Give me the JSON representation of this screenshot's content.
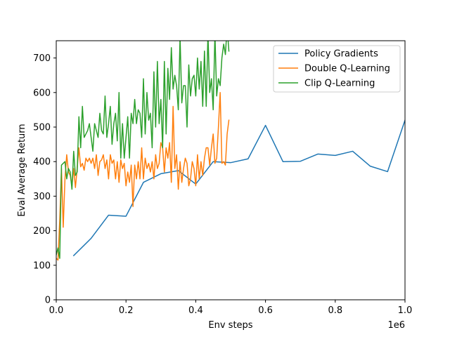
{
  "chart_data": {
    "type": "line",
    "xlabel": "Env steps",
    "ylabel": "Eval Average Return",
    "x_offset_label": "1e6",
    "xlim": [
      0,
      1.0
    ],
    "ylim": [
      0,
      750
    ],
    "x_ticks": [
      0.0,
      0.2,
      0.4,
      0.6,
      0.8,
      1.0
    ],
    "x_tick_labels": [
      "0.0",
      "0.2",
      "0.4",
      "0.6",
      "0.8",
      "1.0"
    ],
    "y_ticks": [
      0,
      100,
      200,
      300,
      400,
      500,
      600,
      700
    ],
    "y_tick_labels": [
      "0",
      "100",
      "200",
      "300",
      "400",
      "500",
      "600",
      "700"
    ],
    "grid": false,
    "legend_position": "top-right",
    "series": [
      {
        "name": "Policy Gradients",
        "color": "#1f77b4",
        "x": [
          0.05,
          0.1,
          0.15,
          0.2,
          0.25,
          0.3,
          0.35,
          0.4,
          0.45,
          0.5,
          0.55,
          0.6,
          0.65,
          0.7,
          0.75,
          0.8,
          0.85,
          0.9,
          0.95,
          1.0
        ],
        "y": [
          128,
          178,
          245,
          242,
          340,
          365,
          374,
          335,
          400,
          397,
          408,
          505,
          400,
          401,
          422,
          418,
          430,
          387,
          371,
          520
        ]
      },
      {
        "name": "Double Q-Learning",
        "color": "#ff7f0e",
        "x": [
          0.0,
          0.005,
          0.01,
          0.015,
          0.02,
          0.025,
          0.03,
          0.035,
          0.04,
          0.045,
          0.05,
          0.055,
          0.06,
          0.065,
          0.07,
          0.075,
          0.08,
          0.085,
          0.09,
          0.095,
          0.1,
          0.105,
          0.11,
          0.115,
          0.12,
          0.125,
          0.13,
          0.135,
          0.14,
          0.145,
          0.15,
          0.155,
          0.16,
          0.165,
          0.17,
          0.175,
          0.18,
          0.185,
          0.19,
          0.195,
          0.2,
          0.205,
          0.21,
          0.215,
          0.22,
          0.225,
          0.23,
          0.235,
          0.24,
          0.245,
          0.25,
          0.255,
          0.26,
          0.265,
          0.27,
          0.275,
          0.28,
          0.285,
          0.29,
          0.295,
          0.3,
          0.305,
          0.31,
          0.315,
          0.32,
          0.325,
          0.33,
          0.335,
          0.34,
          0.345,
          0.35,
          0.355,
          0.36,
          0.365,
          0.37,
          0.375,
          0.38,
          0.385,
          0.39,
          0.395,
          0.4,
          0.405,
          0.41,
          0.415,
          0.42,
          0.425,
          0.43,
          0.435,
          0.44,
          0.445,
          0.45,
          0.455,
          0.46,
          0.465,
          0.47,
          0.475,
          0.48,
          0.485,
          0.49,
          0.495
        ],
        "y": [
          120,
          115,
          230,
          380,
          210,
          350,
          420,
          370,
          360,
          330,
          380,
          325,
          380,
          440,
          385,
          395,
          375,
          410,
          400,
          410,
          395,
          410,
          380,
          420,
          360,
          400,
          405,
          420,
          380,
          405,
          350,
          420,
          395,
          405,
          350,
          400,
          340,
          405,
          380,
          395,
          330,
          370,
          340,
          390,
          270,
          390,
          350,
          400,
          350,
          440,
          350,
          410,
          380,
          395,
          370,
          400,
          350,
          420,
          380,
          395,
          455,
          440,
          370,
          440,
          410,
          455,
          340,
          560,
          380,
          420,
          320,
          400,
          340,
          380,
          410,
          395,
          330,
          350,
          400,
          380,
          330,
          420,
          350,
          400,
          360,
          410,
          440,
          440,
          390,
          440,
          480,
          395,
          410,
          500,
          600,
          395,
          400,
          390,
          480,
          520
        ]
      },
      {
        "name": "Clip Q-Learning",
        "color": "#2ca02c",
        "x": [
          0.0,
          0.005,
          0.01,
          0.015,
          0.02,
          0.025,
          0.03,
          0.035,
          0.04,
          0.045,
          0.05,
          0.055,
          0.06,
          0.065,
          0.07,
          0.075,
          0.08,
          0.085,
          0.09,
          0.095,
          0.1,
          0.105,
          0.11,
          0.115,
          0.12,
          0.125,
          0.13,
          0.135,
          0.14,
          0.145,
          0.15,
          0.155,
          0.16,
          0.165,
          0.17,
          0.175,
          0.18,
          0.185,
          0.19,
          0.195,
          0.2,
          0.205,
          0.21,
          0.215,
          0.22,
          0.225,
          0.23,
          0.235,
          0.24,
          0.245,
          0.25,
          0.255,
          0.26,
          0.265,
          0.27,
          0.275,
          0.28,
          0.285,
          0.29,
          0.295,
          0.3,
          0.305,
          0.31,
          0.315,
          0.32,
          0.325,
          0.33,
          0.335,
          0.34,
          0.345,
          0.35,
          0.355,
          0.36,
          0.365,
          0.37,
          0.375,
          0.38,
          0.385,
          0.39,
          0.395,
          0.4,
          0.405,
          0.41,
          0.415,
          0.42,
          0.425,
          0.43,
          0.435,
          0.44,
          0.445,
          0.45,
          0.455,
          0.46,
          0.465,
          0.47,
          0.475,
          0.48,
          0.485,
          0.49,
          0.495
        ],
        "y": [
          130,
          150,
          120,
          390,
          395,
          400,
          350,
          380,
          370,
          320,
          430,
          360,
          370,
          530,
          440,
          560,
          470,
          480,
          490,
          510,
          470,
          430,
          510,
          490,
          470,
          540,
          490,
          480,
          590,
          470,
          510,
          560,
          450,
          510,
          540,
          460,
          600,
          410,
          510,
          410,
          470,
          530,
          410,
          540,
          510,
          580,
          510,
          550,
          540,
          470,
          640,
          480,
          600,
          520,
          540,
          440,
          660,
          500,
          690,
          510,
          580,
          440,
          690,
          480,
          670,
          580,
          730,
          610,
          650,
          620,
          550,
          760,
          570,
          620,
          620,
          500,
          680,
          590,
          640,
          650,
          590,
          700,
          610,
          690,
          560,
          720,
          560,
          770,
          600,
          640,
          550,
          770,
          590,
          640,
          620,
          700,
          740,
          710,
          790,
          720
        ]
      }
    ]
  }
}
